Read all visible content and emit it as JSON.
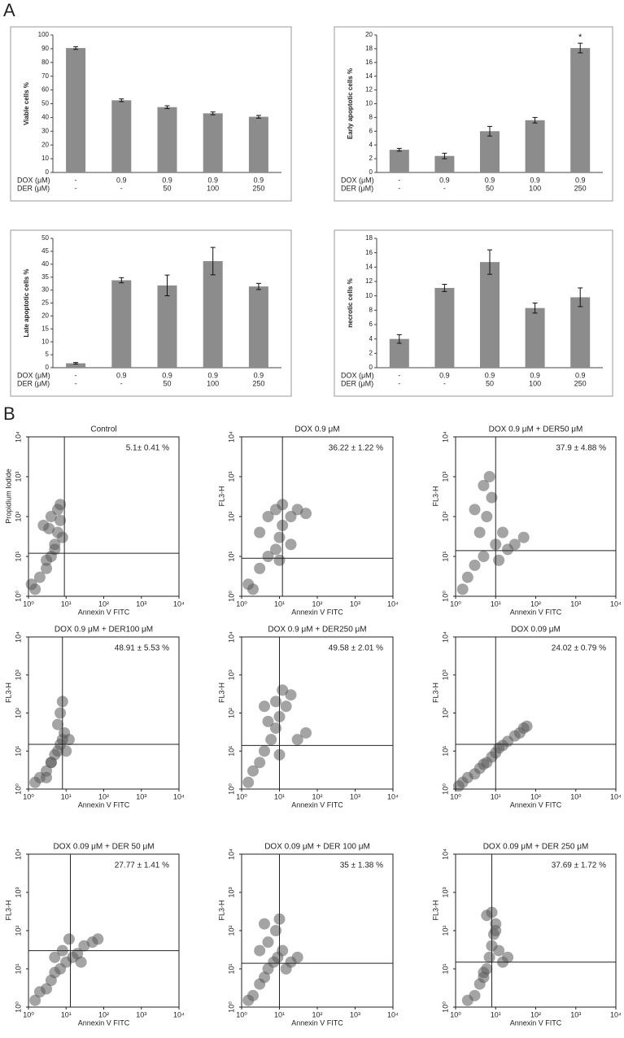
{
  "panel_labels": [
    "A",
    "B"
  ],
  "chart_data": [
    {
      "type": "bar",
      "y_label": "Viable cells %",
      "color": "#8c8c8c",
      "row_names": [
        "DOX (μM)",
        "DER (μM)"
      ],
      "rows": [
        [
          "-",
          "0.9",
          "0.9",
          "0.9",
          "0.9"
        ],
        [
          "-",
          "-",
          "50",
          "100",
          "250"
        ]
      ],
      "values": [
        90.5,
        52.5,
        47.5,
        43,
        40.5
      ],
      "errors": [
        1,
        1,
        1,
        1,
        1
      ],
      "ylim": [
        0,
        100
      ],
      "yticks": [
        0,
        10,
        20,
        30,
        40,
        50,
        60,
        70,
        80,
        90,
        100
      ]
    },
    {
      "type": "bar",
      "y_label": "Early apoptotic cells %",
      "color": "#8c8c8c",
      "row_names": [
        "DOX (μM)",
        "DER (μM)"
      ],
      "rows": [
        [
          "-",
          "0.9",
          "0.9",
          "0.9",
          "0.9"
        ],
        [
          "-",
          "-",
          "50",
          "100",
          "250"
        ]
      ],
      "values": [
        3.3,
        2.4,
        6.0,
        7.6,
        18.1
      ],
      "errors": [
        0.2,
        0.4,
        0.7,
        0.4,
        0.7
      ],
      "annotations": [
        null,
        null,
        null,
        null,
        "*"
      ],
      "ylim": [
        0,
        20
      ],
      "yticks": [
        0,
        2,
        4,
        6,
        8,
        10,
        12,
        14,
        16,
        18,
        20
      ]
    },
    {
      "type": "bar",
      "y_label": "Late apoptotic cells %",
      "color": "#8c8c8c",
      "row_names": [
        "DOX (μM)",
        "DER (μM)"
      ],
      "rows": [
        [
          "-",
          "0.9",
          "0.9",
          "0.9",
          "0.9"
        ],
        [
          "-",
          "-",
          "50",
          "100",
          "250"
        ]
      ],
      "values": [
        1.7,
        33.8,
        31.8,
        41.2,
        31.4
      ],
      "errors": [
        0.3,
        1,
        4,
        5.3,
        1.2
      ],
      "ylim": [
        0,
        50
      ],
      "yticks": [
        0,
        5,
        10,
        15,
        20,
        25,
        30,
        35,
        40,
        45,
        50
      ]
    },
    {
      "type": "bar",
      "y_label": "necrotic cells %",
      "color": "#8c8c8c",
      "row_names": [
        "DOX (μM)",
        "DER (μM)"
      ],
      "rows": [
        [
          "-",
          "0.9",
          "0.9",
          "0.9",
          "0.9"
        ],
        [
          "-",
          "-",
          "50",
          "100",
          "250"
        ]
      ],
      "values": [
        4.0,
        11.1,
        14.7,
        8.3,
        9.8
      ],
      "errors": [
        0.6,
        0.5,
        1.7,
        0.7,
        1.3
      ],
      "ylim": [
        0,
        18
      ],
      "yticks": [
        0,
        2,
        4,
        6,
        8,
        10,
        12,
        14,
        16,
        18
      ]
    },
    {
      "type": "scatter",
      "title": "Control",
      "annotation": "5.1± 0.41 %",
      "x_label": "Annexin V FITC",
      "y_label": "Propidium Iodide",
      "log": true,
      "color": "#5a5a5a",
      "x_gate": 9,
      "y_gate": 12,
      "x": [
        1.5,
        2,
        3,
        4,
        5,
        6,
        7,
        2.5,
        4,
        6,
        3,
        5,
        8,
        1.2,
        3.5,
        7
      ],
      "y": [
        1.5,
        3,
        5,
        10,
        20,
        40,
        80,
        60,
        100,
        150,
        8,
        15,
        30,
        2,
        50,
        200
      ],
      "xlim": [
        1,
        10000
      ],
      "ylim": [
        1,
        10000
      ],
      "xticks": [
        {
          "value": 1,
          "label": "10⁰"
        },
        {
          "value": 10,
          "label": "10¹"
        },
        {
          "value": 100,
          "label": "10²"
        },
        {
          "value": 1000,
          "label": "10³"
        },
        {
          "value": 10000,
          "label": "10⁴"
        }
      ],
      "yticks": [
        {
          "value": 1,
          "label": "10⁰"
        },
        {
          "value": 10,
          "label": "10¹"
        },
        {
          "value": 100,
          "label": "10²"
        },
        {
          "value": 1000,
          "label": "10³"
        },
        {
          "value": 10000,
          "label": "10⁴"
        }
      ]
    },
    {
      "type": "scatter",
      "title": "DOX 0.9 μM",
      "annotation": "36.22 ± 1.22 %",
      "x_label": "Annexin V FITC",
      "y_label": "FL3-H",
      "log": true,
      "color": "#5a5a5a",
      "x_gate": 12,
      "y_gate": 9,
      "x": [
        1.5,
        3,
        5,
        8,
        10,
        12,
        20,
        30,
        50,
        5,
        8,
        12,
        3,
        20,
        2,
        10
      ],
      "y": [
        2,
        5,
        10,
        15,
        30,
        60,
        100,
        150,
        120,
        100,
        150,
        200,
        40,
        20,
        1.5,
        8
      ],
      "xlim": [
        1,
        10000
      ],
      "ylim": [
        1,
        10000
      ],
      "xticks": [
        {
          "value": 1,
          "label": "10⁰"
        },
        {
          "value": 10,
          "label": "10¹"
        },
        {
          "value": 100,
          "label": "10²"
        },
        {
          "value": 1000,
          "label": "10³"
        },
        {
          "value": 10000,
          "label": "10⁴"
        }
      ],
      "yticks": [
        {
          "value": 1,
          "label": "10⁰"
        },
        {
          "value": 10,
          "label": "10¹"
        },
        {
          "value": 100,
          "label": "10²"
        },
        {
          "value": 1000,
          "label": "10³"
        },
        {
          "value": 10000,
          "label": "10⁴"
        }
      ]
    },
    {
      "type": "scatter",
      "title": "DOX 0.9 μM + DER50 μM",
      "annotation": "37.9 ± 4.88 %",
      "x_label": "Annexin V FITC",
      "y_label": "FL3-H",
      "log": true,
      "color": "#5a5a5a",
      "x_gate": 10,
      "y_gate": 14,
      "x": [
        1.5,
        2,
        3,
        5,
        4,
        6,
        8,
        5,
        10,
        20,
        30,
        50,
        3,
        12,
        7,
        15
      ],
      "y": [
        1.5,
        3,
        6,
        10,
        40,
        100,
        300,
        600,
        20,
        15,
        20,
        30,
        150,
        8,
        1000,
        40
      ],
      "xlim": [
        1,
        10000
      ],
      "ylim": [
        1,
        10000
      ],
      "xticks": [
        {
          "value": 1,
          "label": "10⁰"
        },
        {
          "value": 10,
          "label": "10¹"
        },
        {
          "value": 100,
          "label": "10²"
        },
        {
          "value": 1000,
          "label": "10³"
        },
        {
          "value": 10000,
          "label": "10⁴"
        }
      ],
      "yticks": [
        {
          "value": 1,
          "label": "10⁰"
        },
        {
          "value": 10,
          "label": "10¹"
        },
        {
          "value": 100,
          "label": "10²"
        },
        {
          "value": 1000,
          "label": "10³"
        },
        {
          "value": 10000,
          "label": "10⁴"
        }
      ]
    },
    {
      "type": "scatter",
      "title": "DOX 0.9 μM + DER100 μM",
      "annotation": "48.91 ± 5.53 %",
      "x_label": "Annexin V FITC",
      "y_label": "FL3-H",
      "log": true,
      "color": "#5a5a5a",
      "x_gate": 8,
      "y_gate": 15,
      "x": [
        1.5,
        2,
        3,
        4,
        5,
        6,
        7,
        8,
        9,
        10,
        6,
        7,
        4,
        12,
        3,
        8
      ],
      "y": [
        1.5,
        2,
        3,
        5,
        8,
        10,
        15,
        20,
        30,
        10,
        50,
        100,
        5,
        20,
        2,
        200
      ],
      "xlim": [
        1,
        10000
      ],
      "ylim": [
        1,
        10000
      ],
      "xticks": [
        {
          "value": 1,
          "label": "10⁰"
        },
        {
          "value": 10,
          "label": "10¹"
        },
        {
          "value": 100,
          "label": "10²"
        },
        {
          "value": 1000,
          "label": "10³"
        },
        {
          "value": 10000,
          "label": "10⁴"
        }
      ],
      "yticks": [
        {
          "value": 1,
          "label": "10⁰"
        },
        {
          "value": 10,
          "label": "10¹"
        },
        {
          "value": 100,
          "label": "10²"
        },
        {
          "value": 1000,
          "label": "10³"
        },
        {
          "value": 10000,
          "label": "10⁴"
        }
      ]
    },
    {
      "type": "scatter",
      "title": "DOX 0.9 μM + DER250 μM",
      "annotation": "49.58 ± 2.01 %",
      "x_label": "Annexin V FITC",
      "y_label": "FL3-H",
      "log": true,
      "color": "#5a5a5a",
      "x_gate": 10,
      "y_gate": 14,
      "x": [
        1.5,
        2,
        3,
        4,
        6,
        8,
        10,
        15,
        20,
        30,
        50,
        5,
        8,
        12,
        4,
        10
      ],
      "y": [
        1.5,
        3,
        5,
        10,
        20,
        40,
        80,
        150,
        300,
        20,
        30,
        60,
        200,
        400,
        150,
        8
      ],
      "xlim": [
        1,
        10000
      ],
      "ylim": [
        1,
        10000
      ],
      "xticks": [
        {
          "value": 1,
          "label": "10⁰"
        },
        {
          "value": 10,
          "label": "10¹"
        },
        {
          "value": 100,
          "label": "10²"
        },
        {
          "value": 1000,
          "label": "10³"
        },
        {
          "value": 10000,
          "label": "10⁴"
        }
      ],
      "yticks": [
        {
          "value": 1,
          "label": "10⁰"
        },
        {
          "value": 10,
          "label": "10¹"
        },
        {
          "value": 100,
          "label": "10²"
        },
        {
          "value": 1000,
          "label": "10³"
        },
        {
          "value": 10000,
          "label": "10⁴"
        }
      ]
    },
    {
      "type": "scatter",
      "title": "DOX 0.09 μM",
      "annotation": "24.02 ± 0.79  %",
      "x_label": "Annexin V FITC",
      "y_label": "FL3-H",
      "log": true,
      "color": "#5a5a5a",
      "x_gate": 10,
      "y_gate": 15,
      "x": [
        1.2,
        1.5,
        2,
        3,
        4,
        5,
        6,
        8,
        10,
        12,
        15,
        20,
        30,
        40,
        50,
        60
      ],
      "y": [
        1.2,
        1.5,
        2,
        2.5,
        3.5,
        4.5,
        5,
        7,
        9,
        12,
        14,
        18,
        25,
        30,
        40,
        45
      ],
      "xlim": [
        1,
        10000
      ],
      "ylim": [
        1,
        10000
      ],
      "xticks": [
        {
          "value": 1,
          "label": "10⁰"
        },
        {
          "value": 10,
          "label": "10¹"
        },
        {
          "value": 100,
          "label": "10²"
        },
        {
          "value": 1000,
          "label": "10³"
        },
        {
          "value": 10000,
          "label": "10⁴"
        }
      ],
      "yticks": [
        {
          "value": 1,
          "label": "10⁰"
        },
        {
          "value": 10,
          "label": "10¹"
        },
        {
          "value": 100,
          "label": "10²"
        },
        {
          "value": 1000,
          "label": "10³"
        },
        {
          "value": 10000,
          "label": "10⁴"
        }
      ]
    },
    {
      "type": "scatter",
      "title": "DOX 0.09 μM + DER 50 μM",
      "annotation": "27.77 ± 1.41 %",
      "x_label": "Annexin V FITC",
      "y_label": "FL3-H",
      "log": true,
      "color": "#5a5a5a",
      "x_gate": 13,
      "y_gate": 30,
      "x": [
        1.5,
        2,
        3,
        4,
        5,
        7,
        10,
        15,
        20,
        30,
        50,
        70,
        8,
        12,
        5,
        25
      ],
      "y": [
        1.5,
        2.5,
        3,
        5,
        8,
        10,
        15,
        20,
        25,
        40,
        50,
        60,
        30,
        60,
        20,
        15
      ],
      "xlim": [
        1,
        10000
      ],
      "ylim": [
        1,
        10000
      ],
      "xticks": [
        {
          "value": 1,
          "label": "10⁰"
        },
        {
          "value": 10,
          "label": "10¹"
        },
        {
          "value": 100,
          "label": "10²"
        },
        {
          "value": 1000,
          "label": "10³"
        },
        {
          "value": 10000,
          "label": "10⁴"
        }
      ],
      "yticks": [
        {
          "value": 1,
          "label": "10⁰"
        },
        {
          "value": 10,
          "label": "10¹"
        },
        {
          "value": 100,
          "label": "10²"
        },
        {
          "value": 1000,
          "label": "10³"
        },
        {
          "value": 10000,
          "label": "10⁴"
        }
      ]
    },
    {
      "type": "scatter",
      "title": "DOX 0.09 μM + DER 100 μM",
      "annotation": "35 ± 1.38 %",
      "x_label": "Annexin V FITC",
      "y_label": "FL3-H",
      "log": true,
      "color": "#5a5a5a",
      "x_gate": 10,
      "y_gate": 14,
      "x": [
        1.5,
        2,
        3,
        4,
        5,
        7,
        9,
        12,
        20,
        30,
        5,
        8,
        10,
        4,
        15,
        3
      ],
      "y": [
        1.5,
        2,
        4,
        6,
        10,
        15,
        20,
        30,
        15,
        20,
        50,
        100,
        200,
        150,
        10,
        30
      ],
      "xlim": [
        1,
        10000
      ],
      "ylim": [
        1,
        10000
      ],
      "xticks": [
        {
          "value": 1,
          "label": "10⁰"
        },
        {
          "value": 10,
          "label": "10¹"
        },
        {
          "value": 100,
          "label": "10²"
        },
        {
          "value": 1000,
          "label": "10³"
        },
        {
          "value": 10000,
          "label": "10⁴"
        }
      ],
      "yticks": [
        {
          "value": 1,
          "label": "10⁰"
        },
        {
          "value": 10,
          "label": "10¹"
        },
        {
          "value": 100,
          "label": "10²"
        },
        {
          "value": 1000,
          "label": "10³"
        },
        {
          "value": 10000,
          "label": "10⁴"
        }
      ]
    },
    {
      "type": "scatter",
      "title": "DOX 0.09 μM + DER 250 μM",
      "annotation": "37.69 ± 1.72 %",
      "x_label": "Annexin V FITC",
      "y_label": "FL3-H",
      "log": true,
      "color": "#5a5a5a",
      "x_gate": 8,
      "y_gate": 15,
      "x": [
        2,
        3,
        4,
        5,
        6,
        7,
        8,
        9,
        10,
        12,
        15,
        6,
        8,
        10,
        5,
        20
      ],
      "y": [
        1.5,
        2,
        4,
        6,
        10,
        20,
        40,
        80,
        150,
        30,
        15,
        250,
        300,
        100,
        8,
        20
      ],
      "xlim": [
        1,
        10000
      ],
      "ylim": [
        1,
        10000
      ],
      "xticks": [
        {
          "value": 1,
          "label": "10⁰"
        },
        {
          "value": 10,
          "label": "10¹"
        },
        {
          "value": 100,
          "label": "10²"
        },
        {
          "value": 1000,
          "label": "10³"
        },
        {
          "value": 10000,
          "label": "10⁴"
        }
      ],
      "yticks": [
        {
          "value": 1,
          "label": "10⁰"
        },
        {
          "value": 10,
          "label": "10¹"
        },
        {
          "value": 100,
          "label": "10²"
        },
        {
          "value": 1000,
          "label": "10³"
        },
        {
          "value": 10000,
          "label": "10⁴"
        }
      ]
    }
  ]
}
